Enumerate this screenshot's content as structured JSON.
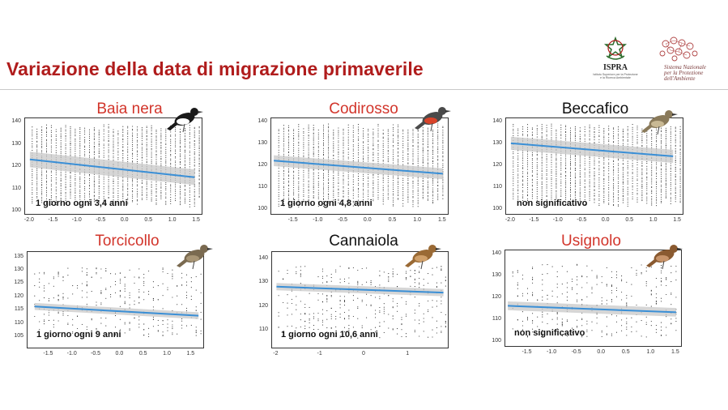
{
  "slide": {
    "title": "Variazione della data di migrazione primaverile"
  },
  "logos": {
    "ispra_name": "ISPRA",
    "ispra_subtitle": "Istituto Superiore per la Protezione e la Ricerca Ambientale",
    "snpa_name": "Sistema Nazionale per la Protezione dell'Ambiente"
  },
  "colors": {
    "title": "#b01c1c",
    "species_red": "#d2352b",
    "trend_line": "#3a8fd6",
    "confidence_band": "#c8c8c8",
    "points": "#222222"
  },
  "chart_data": [
    {
      "type": "scatter",
      "title": "Baia nera",
      "title_color": "red",
      "annotation": "1 giorno ogni 3,4 anni",
      "xlim": [
        -2.1,
        1.6
      ],
      "ylim": [
        99,
        142
      ],
      "xticks": [
        "-2.0",
        "-1.5",
        "-1.0",
        "-0.5",
        "0.0",
        "0.5",
        "1.0",
        "1.5"
      ],
      "yticks": [
        "100",
        "110",
        "120",
        "130",
        "140"
      ],
      "trend": {
        "x": [
          -2.0,
          1.45
        ],
        "y": [
          123.5,
          115.5
        ]
      },
      "band_width": 3.5,
      "bird": "black-white-flycatcher-icon"
    },
    {
      "type": "scatter",
      "title": "Codirosso",
      "title_color": "red",
      "annotation": "1 giorno ogni 4,8 anni",
      "xlim": [
        -1.95,
        1.6
      ],
      "ylim": [
        98,
        142
      ],
      "xticks": [
        "-1.5",
        "-1.0",
        "-0.5",
        "0.0",
        "0.5",
        "1.0",
        "1.5"
      ],
      "yticks": [
        "100",
        "110",
        "120",
        "130",
        "140"
      ],
      "trend": {
        "x": [
          -1.9,
          1.5
        ],
        "y": [
          122.5,
          116.5
        ]
      },
      "band_width": 2.5,
      "bird": "redstart-icon"
    },
    {
      "type": "scatter",
      "title": "Beccafico",
      "title_color": "black",
      "annotation": "non significativo",
      "xlim": [
        -2.1,
        1.6
      ],
      "ylim": [
        98,
        142
      ],
      "xticks": [
        "-2.0",
        "-1.5",
        "-1.0",
        "-0.5",
        "0.0",
        "0.5",
        "1.0",
        "1.5"
      ],
      "yticks": [
        "100",
        "110",
        "120",
        "130",
        "140"
      ],
      "trend": {
        "x": [
          -2.0,
          1.4
        ],
        "y": [
          130.5,
          124.5
        ]
      },
      "band_width": 3.0,
      "bird": "garden-warbler-icon"
    },
    {
      "type": "scatter",
      "title": "Torcicollo",
      "title_color": "red",
      "annotation": "1 giorno ogni 9 anni",
      "xlim": [
        -1.95,
        1.75
      ],
      "ylim": [
        101,
        137
      ],
      "xticks": [
        "-1.5",
        "-1.0",
        "-0.5",
        "0.0",
        "0.5",
        "1.0",
        "1.5"
      ],
      "yticks": [
        "105",
        "110",
        "115",
        "120",
        "125",
        "130",
        "135"
      ],
      "trend": {
        "x": [
          -1.8,
          1.65
        ],
        "y": [
          116.5,
          113.0
        ]
      },
      "band_width": 1.3,
      "bird": "wryneck-icon"
    },
    {
      "type": "scatter",
      "title": "Cannaiola",
      "title_color": "black",
      "annotation": "1 giorno ogni 10,6 anni",
      "xlim": [
        -2.1,
        1.9
      ],
      "ylim": [
        103,
        143
      ],
      "xticks": [
        "-2",
        "-1",
        "0",
        "1"
      ],
      "yticks": [
        "110",
        "120",
        "130",
        "140"
      ],
      "trend": {
        "x": [
          -2.0,
          1.8
        ],
        "y": [
          128.5,
          126.0
        ]
      },
      "band_width": 1.5,
      "bird": "reed-warbler-icon"
    },
    {
      "type": "scatter",
      "title": "Usignolo",
      "title_color": "red",
      "annotation": "non significativo",
      "xlim": [
        -1.95,
        1.6
      ],
      "ylim": [
        98,
        142
      ],
      "xticks": [
        "-1.5",
        "-1.0",
        "-0.5",
        "0.0",
        "0.5",
        "1.0",
        "1.5"
      ],
      "yticks": [
        "100",
        "110",
        "120",
        "130",
        "140"
      ],
      "trend": {
        "x": [
          -1.9,
          1.5
        ],
        "y": [
          116.5,
          113.5
        ]
      },
      "band_width": 2.0,
      "bird": "nightingale-icon"
    }
  ]
}
